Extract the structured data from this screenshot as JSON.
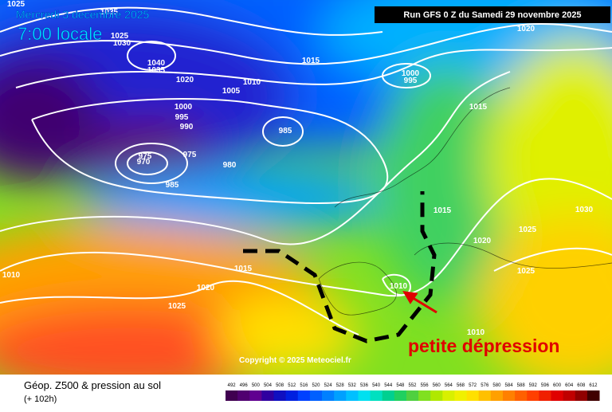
{
  "header": {
    "date": "Mercredi 3 decembre 2025",
    "time": "7:00 locale",
    "run": "Run GFS 0 Z du Samedi 29 novembre 2025"
  },
  "isobar_labels": [
    "1025",
    "1035",
    "1025",
    "1030",
    "1040",
    "1035",
    "1020",
    "1015",
    "1010",
    "1005",
    "1000",
    "995",
    "990",
    "985",
    "975",
    "970",
    "975",
    "980",
    "985",
    "1000",
    "995",
    "1020",
    "1015",
    "1015",
    "1030",
    "1025",
    "1020",
    "1025",
    "1015",
    "1010",
    "1020",
    "1025",
    "1010",
    "1010"
  ],
  "annotation": "petite dépression",
  "copyright": "Copyright © 2025 Meteociel.fr",
  "legend": {
    "title": "Géop. Z500 & pression au sol",
    "lead": "(+ 102h)",
    "values": [
      492,
      496,
      500,
      504,
      508,
      512,
      516,
      520,
      524,
      528,
      532,
      536,
      540,
      544,
      548,
      552,
      556,
      560,
      564,
      568,
      572,
      576,
      580,
      584,
      588,
      592,
      596,
      600,
      604,
      608,
      612
    ],
    "colors": [
      "#400050",
      "#500070",
      "#600090",
      "#3000a0",
      "#1010c0",
      "#0020e0",
      "#0040ff",
      "#0060ff",
      "#0080ff",
      "#00a0ff",
      "#00c0ff",
      "#00e0f0",
      "#00e0c0",
      "#00d090",
      "#20d060",
      "#50d040",
      "#80e020",
      "#b0e800",
      "#d8f000",
      "#f0f000",
      "#ffe000",
      "#ffc000",
      "#ffa000",
      "#ff8000",
      "#ff6000",
      "#ff4000",
      "#f02000",
      "#e00000",
      "#c00000",
      "#900000",
      "#400000"
    ]
  }
}
